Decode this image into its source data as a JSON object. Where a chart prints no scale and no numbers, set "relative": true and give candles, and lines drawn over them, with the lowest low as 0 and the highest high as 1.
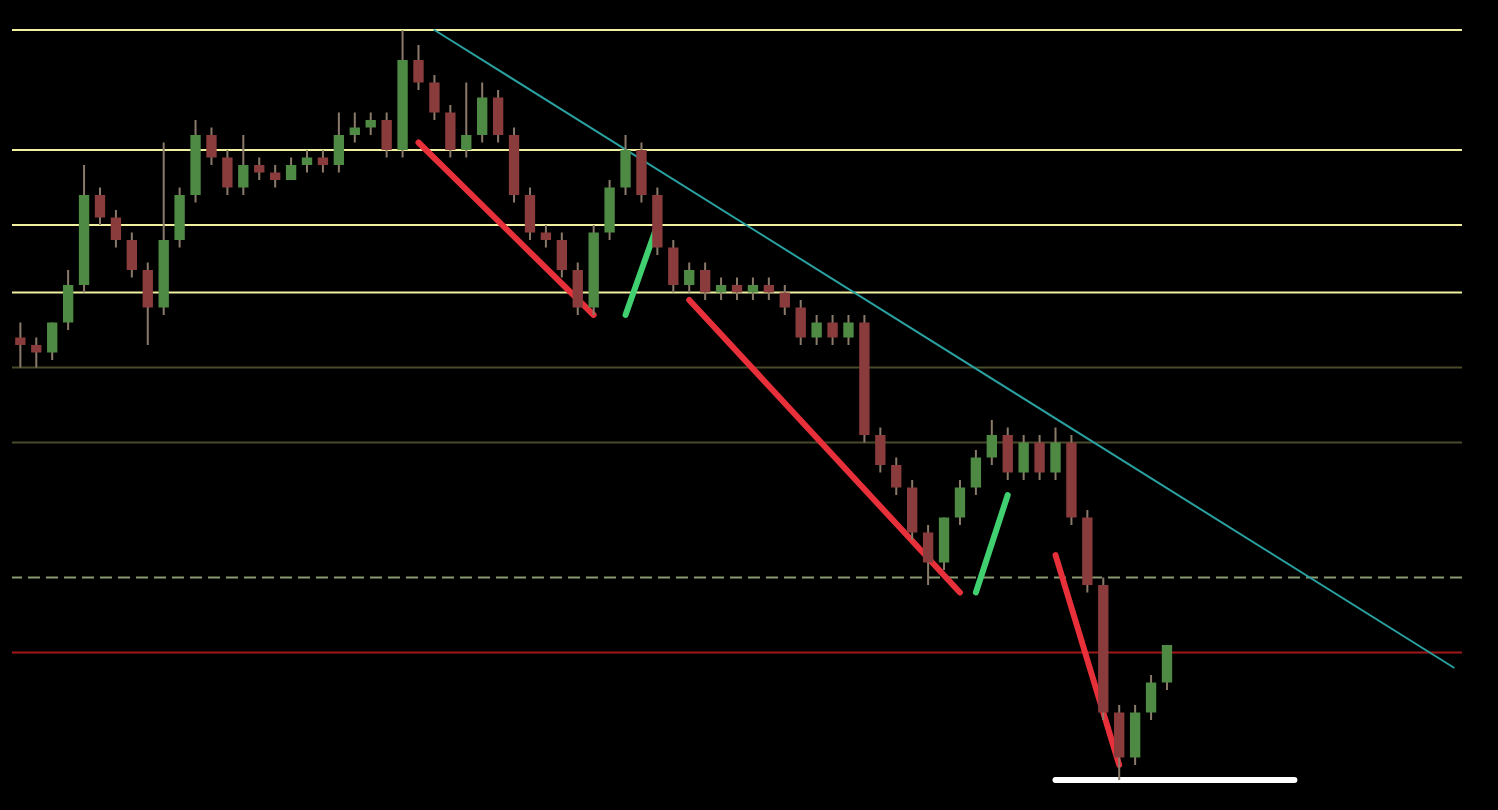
{
  "chart_data": {
    "type": "candlestick",
    "relative": true,
    "categories": [
      null,
      null,
      null,
      null,
      null,
      null,
      null,
      null,
      null,
      null,
      null,
      null,
      null,
      null,
      null,
      null,
      null,
      null,
      null,
      null,
      null,
      null,
      null,
      null,
      null,
      null,
      null,
      null,
      null,
      null,
      null,
      null,
      null,
      null,
      null,
      null,
      null,
      null,
      null,
      null,
      null,
      null,
      null,
      null,
      null,
      null,
      null,
      null,
      null,
      null,
      null,
      null,
      null,
      null,
      null,
      null,
      null,
      null,
      null,
      null,
      null,
      null,
      null,
      null,
      null,
      null,
      null,
      null,
      null,
      null,
      null,
      null,
      null,
      null,
      null,
      null,
      null,
      null,
      null,
      null,
      null,
      null,
      null,
      null,
      null,
      null,
      null,
      null,
      null,
      null,
      null
    ],
    "ohlc": [
      [
        0.59,
        0.61,
        0.55,
        0.58
      ],
      [
        0.58,
        0.59,
        0.55,
        0.57
      ],
      [
        0.57,
        0.61,
        0.56,
        0.61
      ],
      [
        0.61,
        0.68,
        0.6,
        0.66
      ],
      [
        0.66,
        0.82,
        0.65,
        0.78
      ],
      [
        0.78,
        0.79,
        0.74,
        0.75
      ],
      [
        0.75,
        0.76,
        0.71,
        0.72
      ],
      [
        0.72,
        0.73,
        0.67,
        0.68
      ],
      [
        0.68,
        0.69,
        0.58,
        0.63
      ],
      [
        0.63,
        0.85,
        0.62,
        0.72
      ],
      [
        0.72,
        0.79,
        0.71,
        0.78
      ],
      [
        0.78,
        0.88,
        0.77,
        0.86
      ],
      [
        0.86,
        0.87,
        0.82,
        0.83
      ],
      [
        0.83,
        0.84,
        0.78,
        0.79
      ],
      [
        0.79,
        0.86,
        0.78,
        0.82
      ],
      [
        0.82,
        0.83,
        0.8,
        0.81
      ],
      [
        0.81,
        0.82,
        0.79,
        0.8
      ],
      [
        0.8,
        0.83,
        0.8,
        0.82
      ],
      [
        0.82,
        0.84,
        0.81,
        0.83
      ],
      [
        0.83,
        0.84,
        0.81,
        0.82
      ],
      [
        0.82,
        0.89,
        0.81,
        0.86
      ],
      [
        0.86,
        0.89,
        0.85,
        0.87
      ],
      [
        0.87,
        0.89,
        0.86,
        0.88
      ],
      [
        0.88,
        0.89,
        0.83,
        0.84
      ],
      [
        0.84,
        1,
        0.83,
        0.96
      ],
      [
        0.96,
        0.98,
        0.92,
        0.93
      ],
      [
        0.93,
        0.94,
        0.88,
        0.89
      ],
      [
        0.89,
        0.9,
        0.83,
        0.84
      ],
      [
        0.84,
        0.93,
        0.83,
        0.86
      ],
      [
        0.86,
        0.93,
        0.85,
        0.91
      ],
      [
        0.91,
        0.92,
        0.85,
        0.86
      ],
      [
        0.86,
        0.87,
        0.77,
        0.78
      ],
      [
        0.78,
        0.79,
        0.72,
        0.73
      ],
      [
        0.73,
        0.74,
        0.71,
        0.72
      ],
      [
        0.72,
        0.73,
        0.67,
        0.68
      ],
      [
        0.68,
        0.69,
        0.62,
        0.63
      ],
      [
        0.63,
        0.74,
        0.62,
        0.73
      ],
      [
        0.73,
        0.8,
        0.72,
        0.79
      ],
      [
        0.79,
        0.86,
        0.78,
        0.84
      ],
      [
        0.84,
        0.85,
        0.77,
        0.78
      ],
      [
        0.78,
        0.79,
        0.7,
        0.71
      ],
      [
        0.71,
        0.72,
        0.65,
        0.66
      ],
      [
        0.66,
        0.69,
        0.65,
        0.68
      ],
      [
        0.68,
        0.69,
        0.64,
        0.65
      ],
      [
        0.65,
        0.67,
        0.64,
        0.66
      ],
      [
        0.66,
        0.67,
        0.64,
        0.65
      ],
      [
        0.65,
        0.67,
        0.64,
        0.66
      ],
      [
        0.66,
        0.67,
        0.64,
        0.65
      ],
      [
        0.65,
        0.66,
        0.62,
        0.63
      ],
      [
        0.63,
        0.64,
        0.58,
        0.59
      ],
      [
        0.59,
        0.62,
        0.58,
        0.61
      ],
      [
        0.61,
        0.62,
        0.58,
        0.59
      ],
      [
        0.59,
        0.62,
        0.58,
        0.61
      ],
      [
        0.61,
        0.62,
        0.45,
        0.46
      ],
      [
        0.46,
        0.47,
        0.41,
        0.42
      ],
      [
        0.42,
        0.43,
        0.38,
        0.39
      ],
      [
        0.39,
        0.4,
        0.32,
        0.33
      ],
      [
        0.33,
        0.34,
        0.26,
        0.29
      ],
      [
        0.29,
        0.35,
        0.28,
        0.35
      ],
      [
        0.35,
        0.4,
        0.34,
        0.39
      ],
      [
        0.39,
        0.44,
        0.38,
        0.43
      ],
      [
        0.43,
        0.48,
        0.42,
        0.46
      ],
      [
        0.46,
        0.47,
        0.4,
        0.41
      ],
      [
        0.41,
        0.46,
        0.4,
        0.45
      ],
      [
        0.45,
        0.46,
        0.4,
        0.41
      ],
      [
        0.41,
        0.47,
        0.4,
        0.45
      ],
      [
        0.45,
        0.46,
        0.34,
        0.35
      ],
      [
        0.35,
        0.36,
        0.25,
        0.26
      ],
      [
        0.26,
        0.27,
        0.08,
        0.09
      ],
      [
        0.09,
        0.1,
        0,
        0.03
      ],
      [
        0.03,
        0.1,
        0.02,
        0.09
      ],
      [
        0.09,
        0.14,
        0.08,
        0.13
      ],
      [
        0.13,
        0.18,
        0.12,
        0.18
      ],
      null,
      null,
      null,
      null,
      null,
      null,
      null,
      null,
      null,
      null,
      null,
      null,
      null,
      null,
      null,
      null,
      null,
      null
    ],
    "series": [
      {
        "type": "line",
        "color": "#2aa0a0",
        "values": [
          null,
          null,
          null,
          null,
          null,
          null,
          null,
          null,
          null,
          null,
          null,
          null,
          null,
          null,
          null,
          null,
          null,
          null,
          null,
          null,
          null,
          null,
          null,
          null,
          null,
          null,
          1,
          null,
          null,
          null,
          null,
          null,
          null,
          null,
          null,
          null,
          null,
          null,
          null,
          null,
          null,
          null,
          null,
          null,
          null,
          null,
          null,
          null,
          null,
          null,
          null,
          null,
          null,
          null,
          null,
          null,
          null,
          null,
          null,
          null,
          null,
          null,
          null,
          null,
          null,
          null,
          null,
          null,
          null,
          null,
          null,
          null,
          null,
          null,
          null,
          null,
          null,
          null,
          null,
          null,
          null,
          null,
          null,
          null,
          null,
          null,
          null,
          null,
          null,
          null,
          0.15
        ]
      },
      {
        "type": "line",
        "color": "#e8303a",
        "values": [
          null,
          null,
          null,
          null,
          null,
          null,
          null,
          null,
          null,
          null,
          null,
          null,
          null,
          null,
          null,
          null,
          null,
          null,
          null,
          null,
          null,
          null,
          null,
          null,
          null,
          0.85,
          null,
          null,
          null,
          null,
          null,
          null,
          null,
          null,
          null,
          null,
          0.62,
          null,
          null,
          null,
          null,
          null,
          null,
          null,
          null,
          null,
          null,
          null,
          null,
          null,
          null,
          null,
          null,
          null,
          null,
          null,
          null,
          null,
          null,
          null,
          null,
          null,
          null,
          null,
          null,
          null,
          null,
          null,
          null,
          null,
          null,
          null,
          null,
          null,
          null,
          null,
          null,
          null,
          null,
          null,
          null,
          null,
          null,
          null,
          null,
          null,
          null,
          null,
          null,
          null,
          null
        ]
      },
      {
        "type": "line",
        "color": "#e8303a",
        "values": [
          null,
          null,
          null,
          null,
          null,
          null,
          null,
          null,
          null,
          null,
          null,
          null,
          null,
          null,
          null,
          null,
          null,
          null,
          null,
          null,
          null,
          null,
          null,
          null,
          null,
          null,
          null,
          null,
          null,
          null,
          null,
          null,
          null,
          null,
          null,
          null,
          null,
          null,
          null,
          null,
          null,
          null,
          0.64,
          null,
          null,
          null,
          null,
          null,
          null,
          null,
          null,
          null,
          null,
          null,
          null,
          null,
          null,
          null,
          null,
          0.25,
          null,
          null,
          null,
          null,
          null,
          null,
          null,
          null,
          null,
          null,
          null,
          null,
          null,
          null,
          null,
          null,
          null,
          null,
          null,
          null,
          null,
          null,
          null,
          null,
          null,
          null,
          null,
          null,
          null,
          null,
          null
        ]
      },
      {
        "type": "line",
        "color": "#e8303a",
        "values": [
          null,
          null,
          null,
          null,
          null,
          null,
          null,
          null,
          null,
          null,
          null,
          null,
          null,
          null,
          null,
          null,
          null,
          null,
          null,
          null,
          null,
          null,
          null,
          null,
          null,
          null,
          null,
          null,
          null,
          null,
          null,
          null,
          null,
          null,
          null,
          null,
          null,
          null,
          null,
          null,
          null,
          null,
          null,
          null,
          null,
          null,
          null,
          null,
          null,
          null,
          null,
          null,
          null,
          null,
          null,
          null,
          null,
          null,
          null,
          null,
          null,
          null,
          null,
          null,
          null,
          0.3,
          null,
          null,
          null,
          0.02,
          null,
          null,
          null,
          null,
          null,
          null,
          null,
          null,
          null,
          null,
          null,
          null,
          null,
          null,
          null,
          null,
          null,
          null,
          null,
          null,
          null
        ]
      },
      {
        "type": "line",
        "color": "#40d070",
        "values": [
          null,
          null,
          null,
          null,
          null,
          null,
          null,
          null,
          null,
          null,
          null,
          null,
          null,
          null,
          null,
          null,
          null,
          null,
          null,
          null,
          null,
          null,
          null,
          null,
          null,
          null,
          null,
          null,
          null,
          null,
          null,
          null,
          null,
          null,
          null,
          null,
          null,
          null,
          0.62,
          null,
          0.74,
          null,
          null,
          null,
          null,
          null,
          null,
          null,
          null,
          null,
          null,
          null,
          null,
          null,
          null,
          null,
          null,
          null,
          null,
          null,
          null,
          null,
          null,
          null,
          null,
          null,
          null,
          null,
          null,
          null,
          null,
          null,
          null,
          null,
          null,
          null,
          null,
          null,
          null,
          null,
          null,
          null,
          null,
          null,
          null,
          null,
          null,
          null,
          null,
          null,
          null
        ]
      },
      {
        "type": "line",
        "color": "#40d070",
        "values": [
          null,
          null,
          null,
          null,
          null,
          null,
          null,
          null,
          null,
          null,
          null,
          null,
          null,
          null,
          null,
          null,
          null,
          null,
          null,
          null,
          null,
          null,
          null,
          null,
          null,
          null,
          null,
          null,
          null,
          null,
          null,
          null,
          null,
          null,
          null,
          null,
          null,
          null,
          null,
          null,
          null,
          null,
          null,
          null,
          null,
          null,
          null,
          null,
          null,
          null,
          null,
          null,
          null,
          null,
          null,
          null,
          null,
          null,
          null,
          null,
          0.25,
          null,
          0.38,
          null,
          null,
          null,
          null,
          null,
          null,
          null,
          null,
          null,
          null,
          null,
          null,
          null,
          null,
          null,
          null,
          null,
          null,
          null,
          null,
          null,
          null,
          null,
          null,
          null,
          null,
          null,
          null
        ]
      },
      {
        "type": "line",
        "color": "#ffffff",
        "values": [
          null,
          null,
          null,
          null,
          null,
          null,
          null,
          null,
          null,
          null,
          null,
          null,
          null,
          null,
          null,
          null,
          null,
          null,
          null,
          null,
          null,
          null,
          null,
          null,
          null,
          null,
          null,
          null,
          null,
          null,
          null,
          null,
          null,
          null,
          null,
          null,
          null,
          null,
          null,
          null,
          null,
          null,
          null,
          null,
          null,
          null,
          null,
          null,
          null,
          null,
          null,
          null,
          null,
          null,
          null,
          null,
          null,
          null,
          null,
          null,
          null,
          null,
          null,
          null,
          null,
          0,
          null,
          null,
          null,
          null,
          null,
          null,
          null,
          null,
          null,
          null,
          null,
          null,
          null,
          null,
          0,
          null,
          null,
          null,
          null,
          null,
          null,
          null,
          null,
          null,
          null
        ]
      }
    ],
    "ref_lines": [
      {
        "axis": "y",
        "value": 1,
        "color": "#f0f0a0"
      },
      {
        "axis": "y",
        "value": 0.84,
        "color": "#f0f0a0"
      },
      {
        "axis": "y",
        "value": 0.74,
        "color": "#f0f0a0"
      },
      {
        "axis": "y",
        "value": 0.65,
        "color": "#f0f0a0"
      },
      {
        "axis": "y",
        "value": 0.55,
        "color": "#4a4a2a"
      },
      {
        "axis": "y",
        "value": 0.45,
        "color": "#4a4a2a"
      },
      {
        "axis": "y",
        "value": 0.27,
        "color": "#8a9a70",
        "line_style": "dashed"
      },
      {
        "axis": "y",
        "value": 0.17,
        "color": "#a01818"
      }
    ]
  }
}
